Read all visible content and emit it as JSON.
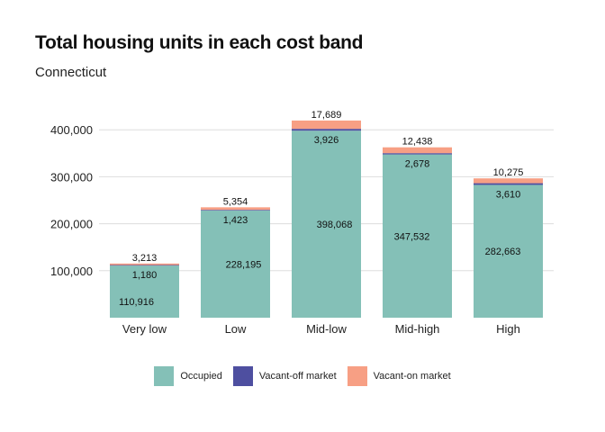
{
  "chart_data": {
    "type": "bar",
    "stacked": true,
    "title": "Total housing units in each cost band",
    "subtitle": "Connecticut",
    "xlabel": "",
    "ylabel": "",
    "categories": [
      "Very low",
      "Low",
      "Mid-low",
      "Mid-high",
      "High"
    ],
    "series": [
      {
        "name": "Occupied",
        "color": "#84c0b7",
        "values": [
          110916,
          228195,
          398068,
          347532,
          282663
        ]
      },
      {
        "name": "Vacant-off market",
        "color": "#4e4fa0",
        "values": [
          1180,
          1423,
          3926,
          2678,
          3610
        ]
      },
      {
        "name": "Vacant-on market",
        "color": "#f79f84",
        "values": [
          3213,
          5354,
          17689,
          12438,
          10275
        ]
      }
    ],
    "data_labels": [
      [
        "110,916",
        "228,195",
        "398,068",
        "347,532",
        "282,663"
      ],
      [
        "1,180",
        "1,423",
        "3,926",
        "2,678",
        "3,610"
      ],
      [
        "3,213",
        "5,354",
        "17,689",
        "12,438",
        "10,275"
      ]
    ],
    "y_ticks": [
      100000,
      200000,
      300000,
      400000
    ],
    "y_tick_labels": [
      "100,000",
      "200,000",
      "300,000",
      "400,000"
    ],
    "ylim": [
      0,
      420000
    ],
    "grid": true,
    "legend_position": "bottom"
  }
}
